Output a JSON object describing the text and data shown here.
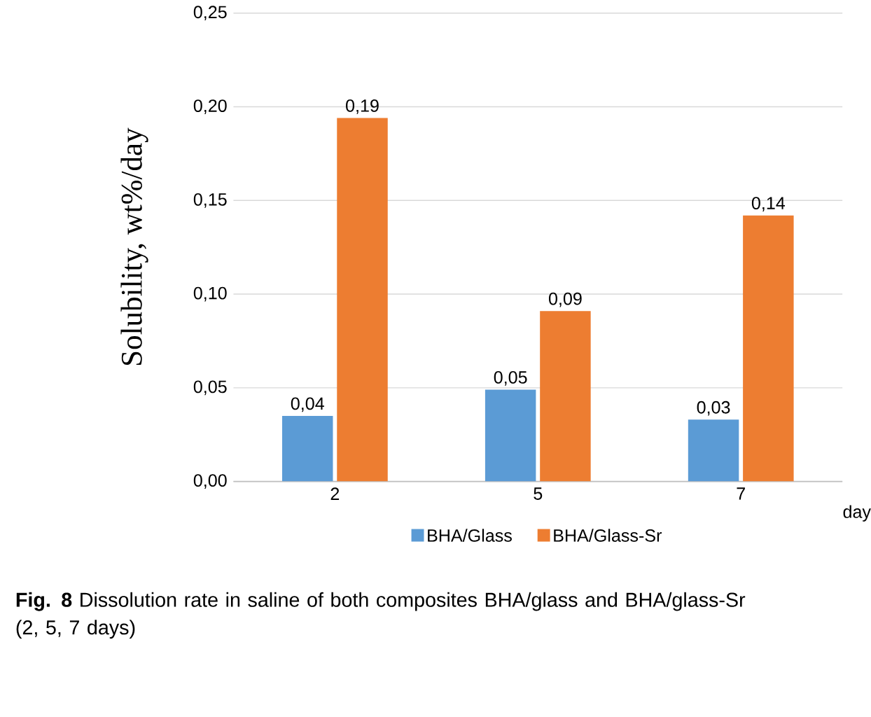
{
  "chart_data": {
    "type": "bar",
    "ylabel": "Solubility,  wt%/day",
    "xlabel": "day",
    "categories": [
      "2",
      "5",
      "7"
    ],
    "series": [
      {
        "name": "BHA/Glass",
        "color": "#5b9bd5",
        "values": [
          0.035,
          0.049,
          0.033
        ],
        "value_labels": [
          "0,04",
          "0,05",
          "0,03"
        ]
      },
      {
        "name": "BHA/Glass-Sr",
        "color": "#ed7d31",
        "values": [
          0.194,
          0.091,
          0.142
        ],
        "value_labels": [
          "0,19",
          "0,09",
          "0,14"
        ]
      }
    ],
    "ylim": [
      0,
      0.25
    ],
    "yticks": [
      {
        "value": 0,
        "label": "0,00"
      },
      {
        "value": 0.05,
        "label": "0,05"
      },
      {
        "value": 0.1,
        "label": "0,10"
      },
      {
        "value": 0.15,
        "label": "0,15"
      },
      {
        "value": 0.2,
        "label": "0,20"
      },
      {
        "value": 0.25,
        "label": "0,25"
      }
    ],
    "grid": "y",
    "legend": "bottom",
    "annotations": [
      "**Fig. 8** Dissolution rate in saline of both composites BHA/glass and BHA/glass-Sr (2, 5, 7 days)"
    ]
  }
}
